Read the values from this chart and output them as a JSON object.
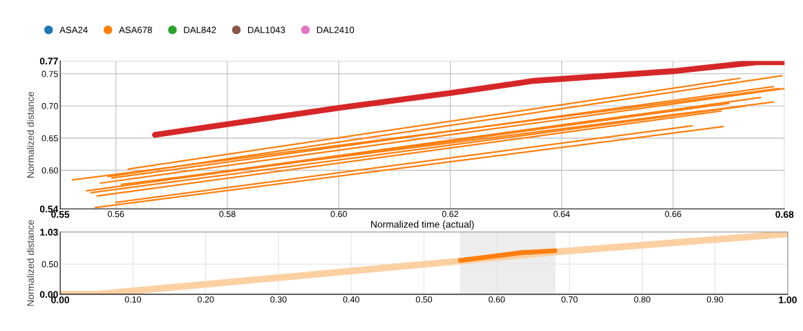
{
  "chart_data": [
    {
      "type": "line",
      "xlabel": "Normalized time (actual)",
      "ylabel": "Normalized distance",
      "legend": "top left",
      "grid": true,
      "xlim": [
        0.55,
        0.68
      ],
      "ylim": [
        0.54,
        0.77
      ],
      "xticks": [
        {
          "value": 0.55,
          "label": "0.55"
        },
        {
          "value": 0.56,
          "label": "0.56"
        },
        {
          "value": 0.58,
          "label": "0.58"
        },
        {
          "value": 0.6,
          "label": "0.60"
        },
        {
          "value": 0.62,
          "label": "0.62"
        },
        {
          "value": 0.64,
          "label": "0.64"
        },
        {
          "value": 0.66,
          "label": "0.66"
        },
        {
          "value": 0.68,
          "label": "0.68"
        }
      ],
      "yticks": [
        {
          "value": 0.54,
          "label": "0.54"
        },
        {
          "value": 0.6,
          "label": "0.60"
        },
        {
          "value": 0.65,
          "label": "0.65"
        },
        {
          "value": 0.7,
          "label": "0.70"
        },
        {
          "value": 0.75,
          "label": "0.75"
        },
        {
          "value": 0.77,
          "label": "0.77"
        }
      ],
      "series": [
        {
          "name": "ASA24",
          "color": "#1f77b4"
        },
        {
          "name": "ASA678",
          "color": "#ff7f0e",
          "x": [
            0.5622,
            0.672
          ],
          "values": [
            0.602,
            0.743
          ]
        },
        {
          "name": "DAL842",
          "color": "#2ca02c"
        },
        {
          "name": "DAL1043",
          "color": "#8c564b"
        },
        {
          "name": "DAL2410",
          "color": "#e377c2"
        },
        {
          "color": "#ff7f0e",
          "x": [
            0.5586,
            0.6795
          ],
          "values": [
            0.59,
            0.747
          ]
        },
        {
          "color": "#ff7f0e",
          "x": [
            0.5593,
            0.678
          ],
          "values": [
            0.588,
            0.73
          ]
        },
        {
          "color": "#ff7f0e",
          "x": [
            0.5522,
            0.679
          ],
          "values": [
            0.585,
            0.727
          ]
        },
        {
          "color": "#ff7f0e",
          "x": [
            0.5572,
            0.68
          ],
          "values": [
            0.58,
            0.727
          ]
        },
        {
          "color": "#ff7f0e",
          "x": [
            0.5664,
            0.6757
          ],
          "values": [
            0.583,
            0.713
          ]
        },
        {
          "color": "#ff7f0e",
          "x": [
            0.561,
            0.678
          ],
          "values": [
            0.578,
            0.706
          ]
        },
        {
          "color": "#ff7f0e",
          "x": [
            0.5547,
            0.67
          ],
          "values": [
            0.568,
            0.704
          ]
        },
        {
          "color": "#ff7f0e",
          "x": [
            0.5555,
            0.673
          ],
          "values": [
            0.565,
            0.7
          ]
        },
        {
          "color": "#ff7f0e",
          "x": [
            0.5566,
            0.6686
          ],
          "values": [
            0.56,
            0.692
          ]
        },
        {
          "color": "#ff7f0e",
          "x": [
            0.5563,
            0.669
          ],
          "values": [
            0.542,
            0.668
          ]
        },
        {
          "color": "#ff7f0e",
          "x": [
            0.56,
            0.6634
          ],
          "values": [
            0.55,
            0.669
          ]
        },
        {
          "color": "#d62728",
          "x": [
            0.567,
            0.6,
            0.62,
            0.635,
            0.66,
            0.675,
            0.68
          ],
          "values": [
            0.655,
            0.697,
            0.72,
            0.739,
            0.754,
            0.768,
            0.768
          ]
        }
      ]
    },
    {
      "type": "line",
      "ylabel": "Normalized distance",
      "grid": true,
      "xlim": [
        0,
        1
      ],
      "ylim": [
        0,
        1.03
      ],
      "xticks": [
        {
          "value": 0,
          "label": "0.00"
        },
        {
          "value": 0.1,
          "label": "0.10"
        },
        {
          "value": 0.2,
          "label": "0.20"
        },
        {
          "value": 0.3,
          "label": "0.30"
        },
        {
          "value": 0.4,
          "label": "0.40"
        },
        {
          "value": 0.5,
          "label": "0.50"
        },
        {
          "value": 0.6,
          "label": "0.60"
        },
        {
          "value": 0.7,
          "label": "0.70"
        },
        {
          "value": 0.8,
          "label": "0.80"
        },
        {
          "value": 0.9,
          "label": "0.90"
        },
        {
          "value": 1,
          "label": "1.00"
        }
      ],
      "yticks": [
        {
          "value": 0,
          "label": "0.00"
        },
        {
          "value": 0.5,
          "label": "0.50"
        },
        {
          "value": 1.03,
          "label": "1.03"
        }
      ],
      "bands": [
        {
          "axis": "x",
          "from": 0.55,
          "to": 0.68,
          "color": "#888888"
        }
      ],
      "series": [
        {
          "color": "#fdd0a2",
          "x": [
            0,
            0.05,
            0.55,
            0.68,
            1
          ],
          "values": [
            0,
            0,
            0.55,
            0.7,
            1
          ]
        },
        {
          "color": "#ff7f0e",
          "x": [
            0.55,
            0.635,
            0.68
          ],
          "values": [
            0.56,
            0.69,
            0.72
          ]
        }
      ]
    }
  ]
}
